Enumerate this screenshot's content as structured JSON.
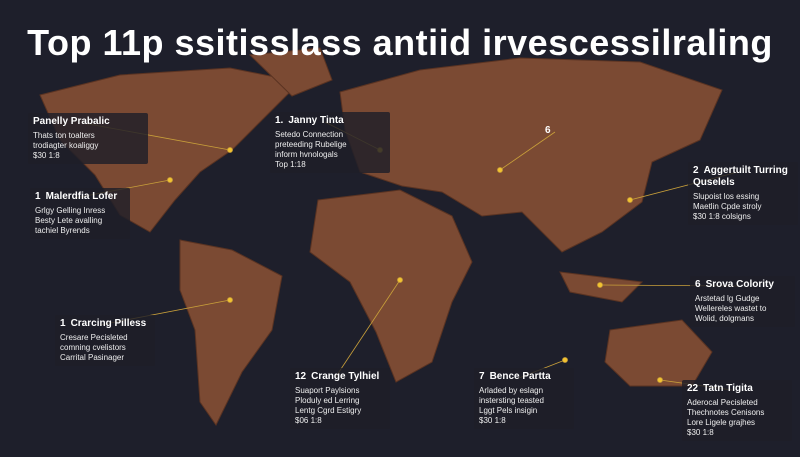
{
  "title": "Top 11p ssitisslass antiid irvescessilraling",
  "callouts": [
    {
      "title": "Panelly Prabalic",
      "lines": [
        "Thats ton toalters",
        "trodiagter koaliggy",
        "$30 1:8"
      ]
    },
    {
      "number": "1",
      "title": "Malerdfia Lofer",
      "lines": [
        "Grlgy Gelling Inress",
        "Besty Lete avalling",
        "tachiel Byrends"
      ]
    },
    {
      "number": "1",
      "title": "Crarcing Pilless",
      "lines": [
        "Cresare Pecisleted",
        "comning cvelistors",
        "Carrital Pasinager"
      ]
    },
    {
      "number": "1.",
      "title": "Janny Tinta",
      "lines": [
        "Setedo Connection",
        "preteeding Rubelige",
        "inform hvnologals",
        "Top 1:18"
      ]
    },
    {
      "number": "6"
    },
    {
      "number": "2",
      "title": "Aggertuilt Turring Quselels",
      "lines": [
        "Slupoist los essing",
        "Maetlin Cpde stroly",
        "$30 1:8 colsigns"
      ]
    },
    {
      "number": "6",
      "title": "Srova Colority",
      "lines": [
        "Arstetad lg Gudge",
        "Wellereles wastet to",
        "Wolid, dolgmans"
      ]
    },
    {
      "number": "12",
      "title": "Crange Tylhiel",
      "lines": [
        "Suaport Paylsions",
        "Ploduly ed Lerring",
        "Lentg Cgrd Estigry",
        "$06 1:8"
      ]
    },
    {
      "number": "7",
      "title": "Bence Partta",
      "lines": [
        "Arladed by eslagn",
        "instersting teasted",
        "Lggt Pels insigin",
        "$30 1:8"
      ]
    },
    {
      "number": "22",
      "title": "Tatn Tigita",
      "lines": [
        "Aderocal Pecisleted",
        "Thechnotes Cenisons",
        "Lore Ligele grajhes",
        "$30 1:8"
      ]
    }
  ]
}
